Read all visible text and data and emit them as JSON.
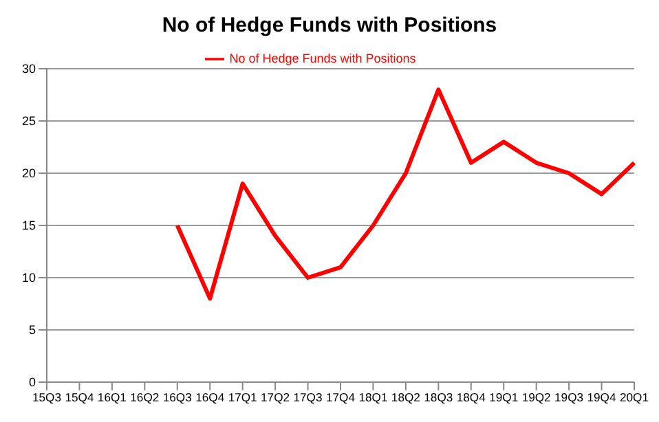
{
  "chart_data": {
    "type": "line",
    "title": "No of Hedge Funds with Positions",
    "categories": [
      "15Q3",
      "15Q4",
      "16Q1",
      "16Q2",
      "16Q3",
      "16Q4",
      "17Q1",
      "17Q2",
      "17Q3",
      "17Q4",
      "18Q1",
      "18Q2",
      "18Q3",
      "18Q4",
      "19Q1",
      "19Q2",
      "19Q3",
      "19Q4",
      "20Q1"
    ],
    "series": [
      {
        "name": "No of Hedge Funds with Positions",
        "color": "#ff0000",
        "values": [
          null,
          null,
          null,
          null,
          15,
          8,
          19,
          14,
          10,
          11,
          15,
          20,
          28,
          21,
          23,
          21,
          20,
          18,
          21
        ]
      }
    ],
    "ylim": [
      0,
      30
    ],
    "yticks": [
      0,
      5,
      10,
      15,
      20,
      25,
      30
    ],
    "grid": "y",
    "legend": "top",
    "marker": "none",
    "line_style": "solid"
  }
}
